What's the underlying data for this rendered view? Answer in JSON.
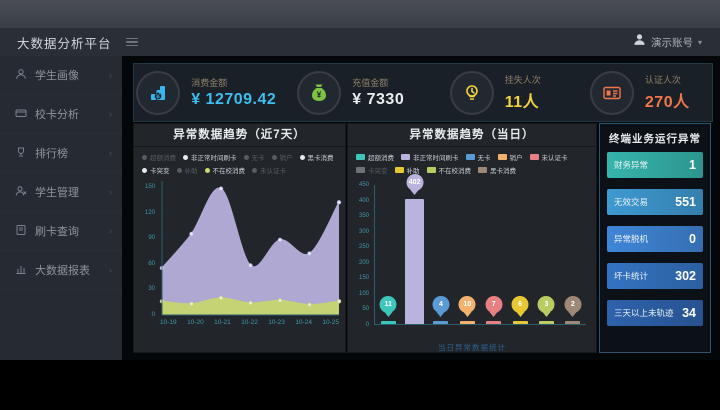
{
  "header": {
    "title": "大数据分析平台",
    "user": "演示账号",
    "caret": "▾"
  },
  "sidebar": {
    "items": [
      {
        "label": "学生画像",
        "icon": "user-icon"
      },
      {
        "label": "校卡分析",
        "icon": "card-icon"
      },
      {
        "label": "排行榜",
        "icon": "trophy-icon"
      },
      {
        "label": "学生管理",
        "icon": "user-manage-icon"
      },
      {
        "label": "刷卡查询",
        "icon": "doc-search-icon"
      },
      {
        "label": "大数据报表",
        "icon": "report-icon"
      }
    ],
    "chevron": "›"
  },
  "kpis": [
    {
      "label": "消费金额",
      "value": "¥ 12709.42",
      "color": "#3fbef0",
      "icon": "coins-icon"
    },
    {
      "label": "充值金额",
      "value": "¥ 7330",
      "color": "#e9eef1",
      "icon": "moneybag-icon"
    },
    {
      "label": "挂失人次",
      "value": "11人",
      "color": "#f5d33f",
      "icon": "bulb-icon"
    },
    {
      "label": "认证人次",
      "value": "270人",
      "color": "#f4764a",
      "icon": "idcard-icon"
    }
  ],
  "left_chart": {
    "title": "异常数据趋势（近7天）",
    "legend": [
      {
        "label": "超额消费",
        "dim": true
      },
      {
        "label": "非正常时间刷卡",
        "dim": false
      },
      {
        "label": "无卡",
        "dim": true
      },
      {
        "label": "销户",
        "dim": true
      },
      {
        "label": "黑卡消费",
        "dim": false
      },
      {
        "label": "卡突变",
        "dim": false
      },
      {
        "label": "补助",
        "dim": true
      },
      {
        "label": "不在校消费",
        "dim": false,
        "dot": "#ccd96b"
      },
      {
        "label": "未认证卡",
        "dim": true
      }
    ]
  },
  "right_chart": {
    "title": "异常数据趋势（当日）",
    "caption": "当日异常数据统计",
    "legend": [
      {
        "label": "超额消费",
        "color": "#3fc6bc",
        "dim": false
      },
      {
        "label": "非正常时间刷卡",
        "color": "#b9b3dd",
        "dim": false
      },
      {
        "label": "无卡",
        "color": "#5b9bd5",
        "dim": false
      },
      {
        "label": "销户",
        "color": "#f2b26e",
        "dim": false
      },
      {
        "label": "未认证卡",
        "color": "#e77f83",
        "dim": false
      },
      {
        "label": "卡突变",
        "color": "#8d9399",
        "dim": true
      },
      {
        "label": "补助",
        "color": "#e8c832",
        "dim": false
      },
      {
        "label": "不在校消费",
        "color": "#b8cc61",
        "dim": false
      },
      {
        "label": "黑卡消费",
        "color": "#a08878",
        "dim": false
      }
    ]
  },
  "terminal_panel": {
    "title": "终端业务运行异常",
    "items": [
      {
        "label": "财务异常",
        "value": "1",
        "color": "#35b5ac"
      },
      {
        "label": "无效交易",
        "value": "551",
        "color": "#3e9ad2"
      },
      {
        "label": "异常脱机",
        "value": "0",
        "color": "#3f86d8"
      },
      {
        "label": "坏卡统计",
        "value": "302",
        "color": "#3473c2"
      },
      {
        "label": "三天以上未轨迹",
        "value": "34",
        "color": "#2e62ad"
      }
    ]
  },
  "chart_data": [
    {
      "type": "area",
      "title": "异常数据趋势（近7天）",
      "categories": [
        "10-19",
        "10-20",
        "10-21",
        "10-22",
        "10-23",
        "10-24",
        "10-25"
      ],
      "series": [
        {
          "name": "非正常时间刷卡",
          "values": [
            55,
            95,
            148,
            58,
            88,
            72,
            132
          ],
          "color": "#b5aeda"
        },
        {
          "name": "不在校消费",
          "values": [
            16,
            13,
            20,
            14,
            17,
            12,
            16
          ],
          "color": "#c6d470"
        }
      ],
      "ylabel": "",
      "xlabel": "",
      "ylim": [
        0,
        150
      ],
      "yticks": [
        0,
        30,
        60,
        90,
        120,
        150
      ],
      "grid": true,
      "legend_position": "top"
    },
    {
      "type": "bar",
      "title": "异常数据趋势（当日）",
      "categories": [
        "超额消费",
        "非正常时间刷卡",
        "无卡",
        "销户",
        "未认证卡",
        "补助",
        "不在校消费",
        "黑卡消费"
      ],
      "values": [
        11,
        402,
        4,
        10,
        7,
        6,
        3,
        2
      ],
      "colors": [
        "#3fc6bc",
        "#b9b3dd",
        "#5b9bd5",
        "#f2b26e",
        "#e77f83",
        "#e8c832",
        "#b8cc61",
        "#a08878"
      ],
      "ylabel": "",
      "xlabel": "当日异常数据统计",
      "ylim": [
        0,
        450
      ],
      "yticks": [
        0,
        50,
        100,
        150,
        200,
        250,
        300,
        350,
        400,
        450
      ],
      "grid": false,
      "legend_position": "top"
    }
  ]
}
